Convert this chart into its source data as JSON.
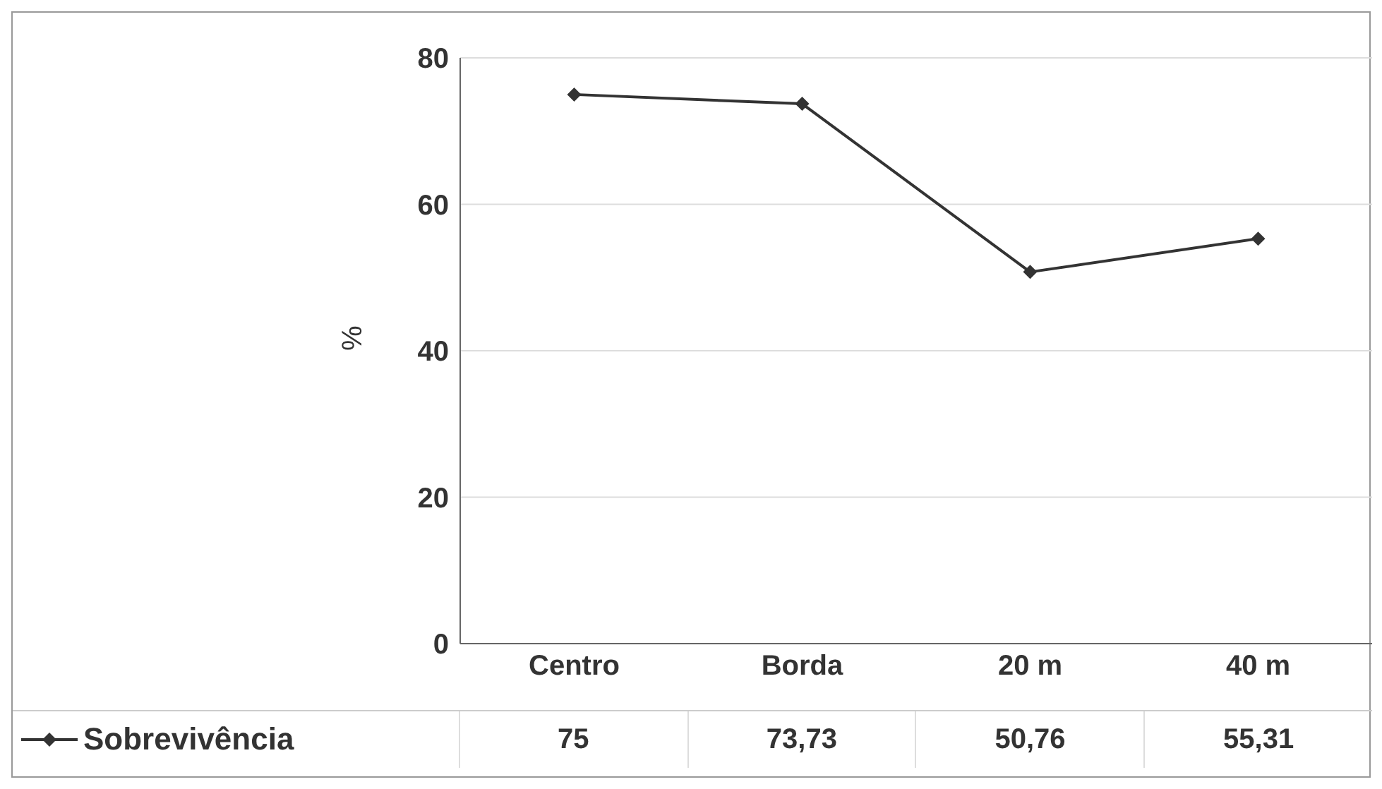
{
  "chart_data": {
    "type": "line",
    "ylabel": "%",
    "categories": [
      "Centro",
      "Borda",
      "20 m",
      "40 m"
    ],
    "series": [
      {
        "name": "Sobrevivência",
        "color": "#333333",
        "values": [
          75,
          73.73,
          50.76,
          55.31
        ],
        "value_labels": [
          "75",
          "73,73",
          "50,76",
          "55,31"
        ]
      }
    ],
    "ylim": [
      0,
      80
    ],
    "yticks": [
      0,
      20,
      40,
      60,
      80
    ],
    "grid": "y",
    "marker": "diamond",
    "line_style": "solid",
    "legend": "bottom left"
  }
}
